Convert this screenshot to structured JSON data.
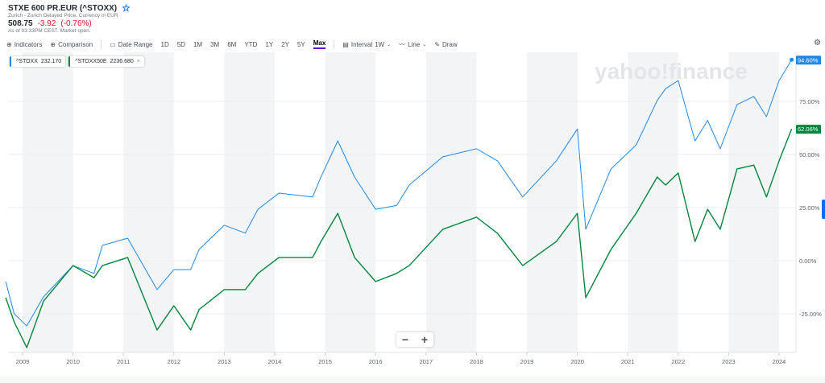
{
  "header": {
    "title": "STXE 600 PR.EUR (^STOXX)",
    "exchange": "Zurich - Zurich Delayed Price. Currency in EUR",
    "price": "508.75",
    "change": "-3.92",
    "change_pct": "(-0.76%)",
    "as_of": "As of 03:33PM CEST. Market open."
  },
  "toolbar": {
    "indicators": "Indicators",
    "comparison": "Comparison",
    "date_range": "Date Range",
    "ranges": [
      "1D",
      "5D",
      "1M",
      "3M",
      "6M",
      "YTD",
      "1Y",
      "2Y",
      "5Y",
      "Max"
    ],
    "active_range": "Max",
    "interval_label": "Interval",
    "interval": "1W",
    "chart_type": "Line",
    "draw": "Draw"
  },
  "legend": [
    {
      "label": "^STOXX",
      "value": "232.170",
      "color": "#1e88e5"
    },
    {
      "label": "^STOXX50E",
      "value": "2236.680",
      "color": "#00873c"
    }
  ],
  "watermark": "yahoo!finance",
  "zoom": {
    "minus": "−",
    "plus": "+"
  },
  "chart_data": {
    "type": "line",
    "yaxis_format": "percent",
    "ylim": [
      -45,
      110
    ],
    "y_ticks": [
      "75.00%",
      "50.00%",
      "25.00%",
      "0.00%",
      "-25.00%"
    ],
    "y_tick_values": [
      75,
      50,
      25,
      0,
      -25
    ],
    "x_ticks": [
      "2009",
      "2010",
      "2011",
      "2012",
      "2013",
      "2014",
      "2015",
      "2016",
      "2017",
      "2018",
      "2019",
      "2020",
      "2021",
      "2022",
      "2023",
      "2024"
    ],
    "grid": true,
    "shaded_years": "odd",
    "x": [
      "2008-09",
      "2008-11",
      "2009-02",
      "2009-06",
      "2010-01",
      "2010-06",
      "2010-08",
      "2011-02",
      "2011-09",
      "2012-01",
      "2012-05",
      "2012-07",
      "2013-01",
      "2013-06",
      "2013-09",
      "2014-02",
      "2014-10",
      "2014-12",
      "2015-04",
      "2015-08",
      "2016-01",
      "2016-06",
      "2016-09",
      "2017-05",
      "2018-01",
      "2018-06",
      "2018-12",
      "2019-08",
      "2020-01",
      "2020-03",
      "2020-09",
      "2021-03",
      "2021-08",
      "2021-10",
      "2022-01",
      "2022-05",
      "2022-08",
      "2022-11",
      "2023-03",
      "2023-07",
      "2023-10",
      "2024-01",
      "2024-04"
    ],
    "series": [
      {
        "name": "^STOXX",
        "color": "#1e88e5",
        "last_label": "94.60%",
        "values": [
          -9.8,
          -25,
          -30.7,
          -17,
          -2.3,
          -6,
          7.2,
          10.6,
          -13.6,
          -4.2,
          -4.2,
          5.3,
          16.7,
          13,
          24.2,
          31.8,
          30,
          39.4,
          56.4,
          39.4,
          24.2,
          26,
          35.6,
          48.9,
          52.7,
          47,
          30,
          47,
          62,
          14.8,
          43.2,
          54.5,
          75.4,
          81,
          84.8,
          56.4,
          66,
          52.7,
          73.5,
          77.3,
          67.8,
          84.8,
          94.6
        ]
      },
      {
        "name": "^STOXX50E",
        "color": "#00873c",
        "last_label": "62.06%",
        "values": [
          -17.4,
          -28.8,
          -40.9,
          -19,
          -2.3,
          -8,
          -2.3,
          1.5,
          -32.6,
          -21.2,
          -32.6,
          -23,
          -13.6,
          -13.6,
          -6,
          1.5,
          1.5,
          9,
          22.3,
          1.5,
          -9.8,
          -6,
          -2.3,
          14.8,
          20.5,
          12.9,
          -2.3,
          9,
          22.3,
          -17.4,
          5.3,
          22.3,
          39.4,
          35.6,
          41.3,
          9,
          24.2,
          14.8,
          43.2,
          45,
          30,
          47,
          62.06
        ]
      }
    ]
  }
}
